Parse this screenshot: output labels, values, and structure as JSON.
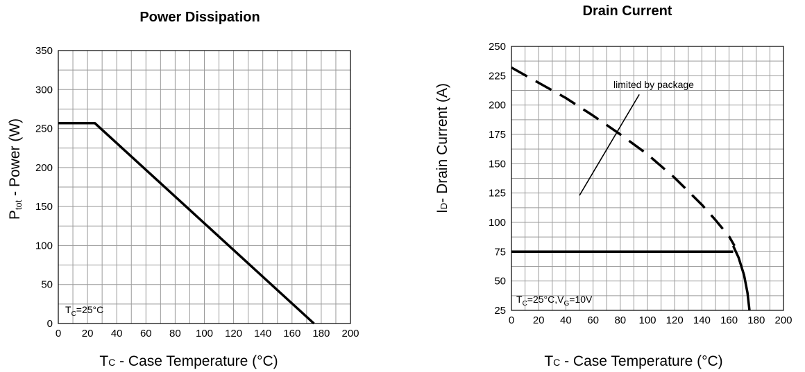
{
  "chart_data": [
    {
      "type": "line",
      "title": "Power Dissipation",
      "ylabel_main": "P",
      "ylabel_sub": "tot",
      "ylabel_rest": " - Power (W)",
      "xlabel_main": "T",
      "xlabel_sub": "C",
      "xlabel_rest": " - Case Temperature (°C)",
      "xlim": [
        0,
        200
      ],
      "ylim": [
        0,
        350
      ],
      "x_ticks": [
        0,
        20,
        40,
        60,
        80,
        100,
        120,
        140,
        160,
        180,
        200
      ],
      "y_ticks": [
        0,
        50,
        100,
        150,
        200,
        250,
        300,
        350
      ],
      "grid": true,
      "annotation": {
        "main": "T",
        "sub": "C",
        "rest": "=25°C"
      },
      "series": [
        {
          "style": "solid",
          "x": [
            0,
            25,
            175
          ],
          "y": [
            257,
            257,
            0
          ]
        }
      ]
    },
    {
      "type": "line",
      "title": "Drain Current",
      "ylabel_main": "I",
      "ylabel_sub": "D",
      "ylabel_rest": "- Drain Current (A)",
      "xlabel_main": "T",
      "xlabel_sub": "C",
      "xlabel_rest": " - Case Temperature (°C)",
      "xlim": [
        0,
        200
      ],
      "ylim": [
        25,
        250
      ],
      "x_ticks": [
        0,
        20,
        40,
        60,
        80,
        100,
        120,
        140,
        160,
        180,
        200
      ],
      "y_ticks": [
        25,
        50,
        75,
        100,
        125,
        150,
        175,
        200,
        225,
        250
      ],
      "grid": true,
      "annotation": {
        "t": "T",
        "tsub": "C",
        "mid": "=25°C,V",
        "vsub": "G",
        "end": "=10V"
      },
      "limit_label": "limited by package",
      "series": [
        {
          "style": "dashed",
          "x": [
            0,
            20,
            40,
            60,
            80,
            100,
            120,
            140,
            150,
            160,
            164
          ],
          "y": [
            232,
            219,
            206,
            191,
            175,
            158,
            138,
            115,
            102,
            88,
            80
          ]
        },
        {
          "style": "solid",
          "x": [
            0,
            163
          ],
          "y": [
            75,
            75
          ]
        },
        {
          "style": "solid",
          "x": [
            163,
            167,
            171,
            173.5,
            175
          ],
          "y": [
            80,
            70,
            55,
            40,
            25
          ]
        },
        {
          "style": "thin",
          "x": [
            50,
            94
          ],
          "y": [
            123,
            209
          ]
        }
      ]
    }
  ]
}
